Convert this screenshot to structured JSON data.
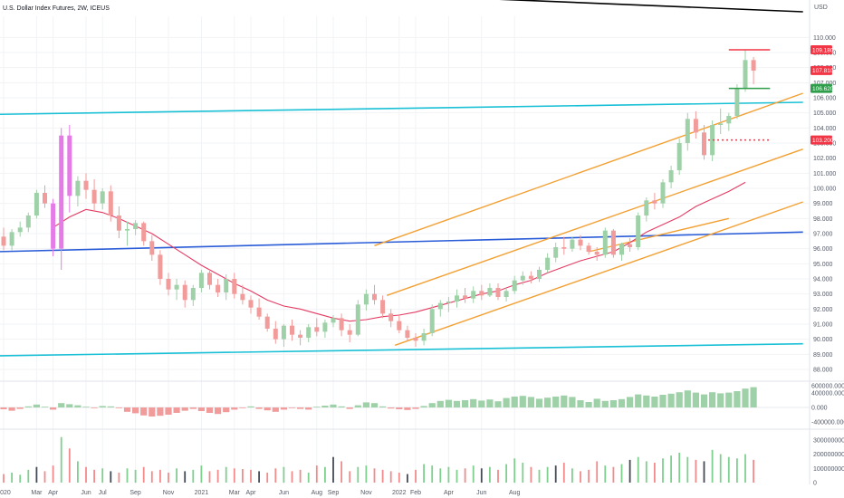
{
  "chart_data": {
    "type": "candlestick",
    "title": "U.S. Dollar Index Futures, 2W, ICEUS",
    "currency": "USD",
    "colors": {
      "up": "#9fd1a8",
      "down": "#f19b9b",
      "highlight": "#e47be6",
      "ma": "#e53a62",
      "channel": "#f3a033",
      "support_cyan": "#19c0d6",
      "support_blue": "#2a5cd8",
      "resistance_black": "#000000",
      "red_tag": "#f23645",
      "green_tag": "#2e9e4a"
    },
    "price_axis": {
      "ticks": [
        "110.000",
        "109.000",
        "108.000",
        "107.000",
        "106.000",
        "105.000",
        "104.000",
        "103.000",
        "102.000",
        "101.000",
        "100.000",
        "99.000",
        "98.000",
        "97.000",
        "96.000",
        "95.000",
        "94.000",
        "93.000",
        "92.000",
        "91.000",
        "90.000",
        "89.000",
        "88.000"
      ],
      "range": [
        87.4,
        111.4
      ]
    },
    "price_tags": [
      {
        "label": "109.180",
        "value": 109.18,
        "color": "#f23645"
      },
      {
        "label": "107.810",
        "value": 107.81,
        "color": "#f23645"
      },
      {
        "label": "106.620",
        "value": 106.62,
        "color": "#2e9e4a"
      },
      {
        "label": "103.200",
        "value": 103.2,
        "color": "#f23645"
      }
    ],
    "osc_axis": {
      "ticks": [
        "600000.000",
        "400000.000",
        "0.000",
        "-400000.000"
      ],
      "range": [
        -500000,
        650000
      ]
    },
    "vol_axis": {
      "ticks": [
        "300000000",
        "200000000",
        "100000000",
        "0"
      ],
      "range": [
        0,
        350000000
      ]
    },
    "time_labels": [
      {
        "label": "2020",
        "bar": 0
      },
      {
        "label": "Mar",
        "bar": 4
      },
      {
        "label": "Apr",
        "bar": 6
      },
      {
        "label": "Jun",
        "bar": 10
      },
      {
        "label": "Jul",
        "bar": 12
      },
      {
        "label": "Sep",
        "bar": 16
      },
      {
        "label": "Nov",
        "bar": 20
      },
      {
        "label": "2021",
        "bar": 24
      },
      {
        "label": "Mar",
        "bar": 28
      },
      {
        "label": "Apr",
        "bar": 30
      },
      {
        "label": "Jun",
        "bar": 34
      },
      {
        "label": "Aug",
        "bar": 38
      },
      {
        "label": "Sep",
        "bar": 40
      },
      {
        "label": "Nov",
        "bar": 44
      },
      {
        "label": "2022",
        "bar": 48
      },
      {
        "label": "Feb",
        "bar": 50
      },
      {
        "label": "Apr",
        "bar": 54
      },
      {
        "label": "Jun",
        "bar": 58
      },
      {
        "label": "Aug",
        "bar": 62
      }
    ],
    "candles": [
      {
        "o": 96.8,
        "h": 97.4,
        "l": 95.9,
        "c": 96.2
      },
      {
        "o": 96.2,
        "h": 97.3,
        "l": 95.9,
        "c": 97.1
      },
      {
        "o": 97.1,
        "h": 97.8,
        "l": 96.8,
        "c": 97.4
      },
      {
        "o": 97.4,
        "h": 98.4,
        "l": 97.1,
        "c": 98.2
      },
      {
        "o": 98.2,
        "h": 99.9,
        "l": 98.0,
        "c": 99.7
      },
      {
        "o": 99.7,
        "h": 100.2,
        "l": 98.7,
        "c": 99.0
      },
      {
        "o": 99.0,
        "h": 99.3,
        "l": 95.5,
        "c": 96.0
      },
      {
        "o": 96.0,
        "h": 104.0,
        "l": 94.6,
        "c": 103.5
      },
      {
        "o": 103.5,
        "h": 104.2,
        "l": 98.4,
        "c": 99.5
      },
      {
        "o": 99.5,
        "h": 100.8,
        "l": 98.8,
        "c": 100.5
      },
      {
        "o": 100.5,
        "h": 101.0,
        "l": 99.3,
        "c": 99.9
      },
      {
        "o": 99.9,
        "h": 100.6,
        "l": 98.5,
        "c": 99.0
      },
      {
        "o": 99.0,
        "h": 100.0,
        "l": 98.6,
        "c": 99.8
      },
      {
        "o": 99.8,
        "h": 100.2,
        "l": 97.8,
        "c": 98.2
      },
      {
        "o": 98.2,
        "h": 98.8,
        "l": 96.7,
        "c": 97.2
      },
      {
        "o": 97.2,
        "h": 97.8,
        "l": 96.2,
        "c": 97.3
      },
      {
        "o": 97.3,
        "h": 97.9,
        "l": 96.9,
        "c": 97.7
      },
      {
        "o": 97.7,
        "h": 97.8,
        "l": 96.2,
        "c": 96.5
      },
      {
        "o": 96.5,
        "h": 96.9,
        "l": 95.2,
        "c": 95.6
      },
      {
        "o": 95.6,
        "h": 95.9,
        "l": 93.6,
        "c": 94.0
      },
      {
        "o": 94.0,
        "h": 94.4,
        "l": 92.9,
        "c": 93.3
      },
      {
        "o": 93.3,
        "h": 94.0,
        "l": 92.6,
        "c": 93.6
      },
      {
        "o": 93.6,
        "h": 93.9,
        "l": 92.1,
        "c": 92.6
      },
      {
        "o": 92.6,
        "h": 93.6,
        "l": 92.2,
        "c": 93.4
      },
      {
        "o": 93.4,
        "h": 94.6,
        "l": 93.1,
        "c": 94.4
      },
      {
        "o": 94.4,
        "h": 94.6,
        "l": 93.3,
        "c": 93.6
      },
      {
        "o": 93.6,
        "h": 94.0,
        "l": 92.8,
        "c": 93.1
      },
      {
        "o": 93.1,
        "h": 94.3,
        "l": 92.6,
        "c": 94.0
      },
      {
        "o": 94.0,
        "h": 94.4,
        "l": 92.7,
        "c": 93.0
      },
      {
        "o": 93.0,
        "h": 93.6,
        "l": 92.3,
        "c": 92.6
      },
      {
        "o": 92.6,
        "h": 92.9,
        "l": 91.7,
        "c": 92.1
      },
      {
        "o": 92.1,
        "h": 92.7,
        "l": 91.3,
        "c": 91.5
      },
      {
        "o": 91.5,
        "h": 91.7,
        "l": 90.5,
        "c": 90.7
      },
      {
        "o": 90.7,
        "h": 91.2,
        "l": 89.7,
        "c": 90.0
      },
      {
        "o": 90.0,
        "h": 91.0,
        "l": 89.5,
        "c": 90.9
      },
      {
        "o": 90.9,
        "h": 91.3,
        "l": 89.9,
        "c": 90.3
      },
      {
        "o": 90.3,
        "h": 90.6,
        "l": 89.6,
        "c": 90.1
      },
      {
        "o": 90.1,
        "h": 91.0,
        "l": 89.8,
        "c": 90.8
      },
      {
        "o": 90.8,
        "h": 91.4,
        "l": 90.2,
        "c": 90.5
      },
      {
        "o": 90.5,
        "h": 91.3,
        "l": 90.1,
        "c": 91.1
      },
      {
        "o": 91.1,
        "h": 91.6,
        "l": 90.8,
        "c": 91.4
      },
      {
        "o": 91.4,
        "h": 91.7,
        "l": 90.2,
        "c": 90.6
      },
      {
        "o": 90.6,
        "h": 91.0,
        "l": 89.8,
        "c": 90.3
      },
      {
        "o": 90.3,
        "h": 92.6,
        "l": 90.2,
        "c": 92.3
      },
      {
        "o": 92.3,
        "h": 93.3,
        "l": 91.9,
        "c": 93.0
      },
      {
        "o": 93.0,
        "h": 93.6,
        "l": 92.3,
        "c": 92.6
      },
      {
        "o": 92.6,
        "h": 92.9,
        "l": 91.4,
        "c": 91.7
      },
      {
        "o": 91.7,
        "h": 92.0,
        "l": 90.8,
        "c": 91.2
      },
      {
        "o": 91.2,
        "h": 91.6,
        "l": 90.4,
        "c": 90.6
      },
      {
        "o": 90.6,
        "h": 90.9,
        "l": 89.9,
        "c": 90.1
      },
      {
        "o": 90.1,
        "h": 90.4,
        "l": 89.5,
        "c": 89.9
      },
      {
        "o": 89.9,
        "h": 90.7,
        "l": 89.6,
        "c": 90.4
      },
      {
        "o": 90.4,
        "h": 92.3,
        "l": 90.2,
        "c": 92.0
      },
      {
        "o": 92.0,
        "h": 92.6,
        "l": 91.5,
        "c": 92.4
      },
      {
        "o": 92.4,
        "h": 92.8,
        "l": 91.8,
        "c": 92.5
      },
      {
        "o": 92.5,
        "h": 93.3,
        "l": 92.1,
        "c": 92.9
      },
      {
        "o": 92.9,
        "h": 93.4,
        "l": 92.4,
        "c": 92.7
      },
      {
        "o": 92.7,
        "h": 93.5,
        "l": 92.4,
        "c": 93.2
      },
      {
        "o": 93.2,
        "h": 93.6,
        "l": 92.6,
        "c": 92.9
      },
      {
        "o": 92.9,
        "h": 93.7,
        "l": 92.8,
        "c": 93.4
      },
      {
        "o": 93.4,
        "h": 93.7,
        "l": 92.6,
        "c": 92.8
      },
      {
        "o": 92.8,
        "h": 93.4,
        "l": 92.5,
        "c": 93.2
      },
      {
        "o": 93.2,
        "h": 94.2,
        "l": 93.0,
        "c": 93.9
      },
      {
        "o": 93.9,
        "h": 94.5,
        "l": 93.6,
        "c": 94.2
      },
      {
        "o": 94.2,
        "h": 94.5,
        "l": 93.7,
        "c": 94.0
      },
      {
        "o": 94.0,
        "h": 94.8,
        "l": 93.8,
        "c": 94.6
      },
      {
        "o": 94.6,
        "h": 95.7,
        "l": 94.4,
        "c": 95.4
      },
      {
        "o": 95.4,
        "h": 96.4,
        "l": 95.1,
        "c": 96.1
      },
      {
        "o": 96.1,
        "h": 96.8,
        "l": 95.6,
        "c": 96.0
      },
      {
        "o": 96.0,
        "h": 96.8,
        "l": 95.8,
        "c": 96.6
      },
      {
        "o": 96.6,
        "h": 96.9,
        "l": 95.9,
        "c": 96.2
      },
      {
        "o": 96.2,
        "h": 96.4,
        "l": 95.6,
        "c": 95.8
      },
      {
        "o": 95.8,
        "h": 96.1,
        "l": 95.2,
        "c": 95.6
      },
      {
        "o": 95.6,
        "h": 97.4,
        "l": 95.4,
        "c": 97.2
      },
      {
        "o": 97.2,
        "h": 97.3,
        "l": 95.4,
        "c": 95.6
      },
      {
        "o": 95.6,
        "h": 96.4,
        "l": 95.2,
        "c": 96.3
      },
      {
        "o": 96.3,
        "h": 96.7,
        "l": 95.8,
        "c": 96.1
      },
      {
        "o": 96.1,
        "h": 98.4,
        "l": 95.9,
        "c": 98.2
      },
      {
        "o": 98.2,
        "h": 99.4,
        "l": 97.8,
        "c": 99.2
      },
      {
        "o": 99.2,
        "h": 99.7,
        "l": 98.6,
        "c": 99.0
      },
      {
        "o": 99.0,
        "h": 100.6,
        "l": 98.7,
        "c": 100.4
      },
      {
        "o": 100.4,
        "h": 101.5,
        "l": 100.0,
        "c": 101.2
      },
      {
        "o": 101.2,
        "h": 103.3,
        "l": 100.9,
        "c": 103.0
      },
      {
        "o": 103.0,
        "h": 105.0,
        "l": 102.5,
        "c": 104.6
      },
      {
        "o": 104.6,
        "h": 105.1,
        "l": 103.3,
        "c": 103.7
      },
      {
        "o": 103.7,
        "h": 104.2,
        "l": 101.9,
        "c": 102.2
      },
      {
        "o": 102.2,
        "h": 104.5,
        "l": 101.8,
        "c": 104.2
      },
      {
        "o": 104.2,
        "h": 105.3,
        "l": 103.6,
        "c": 104.3
      },
      {
        "o": 104.3,
        "h": 105.0,
        "l": 103.8,
        "c": 104.8
      },
      {
        "o": 104.8,
        "h": 106.9,
        "l": 104.6,
        "c": 106.6
      },
      {
        "o": 106.6,
        "h": 109.2,
        "l": 106.4,
        "c": 108.5
      },
      {
        "o": 108.5,
        "h": 108.7,
        "l": 106.9,
        "c": 107.8
      }
    ],
    "highlight_candles": [
      6,
      7,
      8
    ],
    "moving_average": [
      {
        "bar": 6,
        "v": 97.4
      },
      {
        "bar": 8,
        "v": 98.1
      },
      {
        "bar": 10,
        "v": 98.6
      },
      {
        "bar": 12,
        "v": 98.4
      },
      {
        "bar": 14,
        "v": 98.0
      },
      {
        "bar": 16,
        "v": 97.5
      },
      {
        "bar": 18,
        "v": 97.0
      },
      {
        "bar": 20,
        "v": 96.3
      },
      {
        "bar": 22,
        "v": 95.6
      },
      {
        "bar": 24,
        "v": 94.9
      },
      {
        "bar": 26,
        "v": 94.3
      },
      {
        "bar": 28,
        "v": 93.7
      },
      {
        "bar": 30,
        "v": 93.2
      },
      {
        "bar": 32,
        "v": 92.6
      },
      {
        "bar": 34,
        "v": 92.2
      },
      {
        "bar": 36,
        "v": 92.0
      },
      {
        "bar": 38,
        "v": 91.7
      },
      {
        "bar": 40,
        "v": 91.4
      },
      {
        "bar": 42,
        "v": 91.2
      },
      {
        "bar": 44,
        "v": 91.3
      },
      {
        "bar": 46,
        "v": 91.5
      },
      {
        "bar": 48,
        "v": 91.6
      },
      {
        "bar": 50,
        "v": 91.8
      },
      {
        "bar": 52,
        "v": 92.1
      },
      {
        "bar": 54,
        "v": 92.4
      },
      {
        "bar": 56,
        "v": 92.7
      },
      {
        "bar": 58,
        "v": 93.0
      },
      {
        "bar": 60,
        "v": 93.2
      },
      {
        "bar": 62,
        "v": 93.6
      },
      {
        "bar": 64,
        "v": 93.9
      },
      {
        "bar": 66,
        "v": 94.4
      },
      {
        "bar": 68,
        "v": 94.8
      },
      {
        "bar": 70,
        "v": 95.2
      },
      {
        "bar": 72,
        "v": 95.5
      },
      {
        "bar": 74,
        "v": 95.8
      },
      {
        "bar": 76,
        "v": 96.4
      },
      {
        "bar": 78,
        "v": 97.1
      },
      {
        "bar": 80,
        "v": 97.6
      },
      {
        "bar": 82,
        "v": 98.1
      },
      {
        "bar": 84,
        "v": 98.8
      },
      {
        "bar": 86,
        "v": 99.3
      },
      {
        "bar": 88,
        "v": 99.8
      },
      {
        "bar": 90,
        "v": 100.4
      }
    ],
    "trendlines": [
      {
        "color": "#000000",
        "x1": -1,
        "y1": 113.9,
        "x2": 97,
        "y2": 111.7,
        "width": 1.6
      },
      {
        "color": "#19c0d6",
        "x1": -1,
        "y1": 104.9,
        "x2": 97,
        "y2": 105.7,
        "width": 1.6
      },
      {
        "color": "#2a5cd8",
        "x1": -1,
        "y1": 95.8,
        "x2": 97,
        "y2": 97.1,
        "width": 1.6
      },
      {
        "color": "#19c0d6",
        "x1": -1,
        "y1": 88.9,
        "x2": 97,
        "y2": 89.7,
        "width": 1.6
      },
      {
        "color": "#f3a033",
        "x1": 45,
        "y1": 96.2,
        "x2": 97,
        "y2": 106.3,
        "width": 1.4
      },
      {
        "color": "#f3a033",
        "x1": 46.5,
        "y1": 92.9,
        "x2": 97,
        "y2": 102.6,
        "width": 1.4
      },
      {
        "color": "#f3a033",
        "x1": 47.5,
        "y1": 89.6,
        "x2": 97,
        "y2": 99.1,
        "width": 1.4
      },
      {
        "color": "#f3a033",
        "x1": 71,
        "y1": 95.8,
        "x2": 88,
        "y2": 98.0,
        "width": 1.4
      }
    ],
    "hlines": [
      {
        "value": 109.18,
        "x1": 88,
        "x2": 93,
        "color": "#f23645",
        "dashed": false
      },
      {
        "value": 106.62,
        "x1": 88,
        "x2": 93,
        "color": "#2e9e4a",
        "dashed": false
      },
      {
        "value": 103.2,
        "x1": 85.5,
        "x2": 93,
        "color": "#f23645",
        "dashed": true
      }
    ],
    "oscillator": [
      -50000,
      -90000,
      -40000,
      30000,
      80000,
      20000,
      -60000,
      120000,
      90000,
      60000,
      20000,
      -10000,
      40000,
      30000,
      -20000,
      -120000,
      -160000,
      -220000,
      -250000,
      -230000,
      -200000,
      -150000,
      -90000,
      -40000,
      -100000,
      -150000,
      -180000,
      -130000,
      -60000,
      -20000,
      30000,
      -40000,
      -80000,
      -120000,
      -60000,
      -20000,
      -40000,
      -60000,
      20000,
      50000,
      80000,
      30000,
      -40000,
      60000,
      140000,
      120000,
      30000,
      -30000,
      -50000,
      -70000,
      -40000,
      40000,
      120000,
      180000,
      210000,
      180000,
      200000,
      230000,
      190000,
      220000,
      170000,
      260000,
      300000,
      320000,
      290000,
      240000,
      270000,
      300000,
      330000,
      290000,
      200000,
      150000,
      240000,
      180000,
      200000,
      230000,
      290000,
      360000,
      330000,
      300000,
      350000,
      380000,
      420000,
      470000,
      410000,
      360000,
      420000,
      390000,
      410000,
      450000,
      520000,
      560000
    ],
    "volume": [
      60000000,
      70000000,
      55000000,
      90000000,
      110000000,
      80000000,
      120000000,
      320000000,
      240000000,
      150000000,
      110000000,
      90000000,
      100000000,
      80000000,
      70000000,
      100000000,
      90000000,
      110000000,
      80000000,
      90000000,
      70000000,
      100000000,
      80000000,
      90000000,
      120000000,
      80000000,
      90000000,
      110000000,
      100000000,
      95000000,
      90000000,
      80000000,
      70000000,
      100000000,
      110000000,
      80000000,
      90000000,
      70000000,
      120000000,
      110000000,
      180000000,
      150000000,
      80000000,
      110000000,
      120000000,
      100000000,
      90000000,
      80000000,
      70000000,
      60000000,
      90000000,
      130000000,
      120000000,
      100000000,
      110000000,
      90000000,
      100000000,
      120000000,
      100000000,
      110000000,
      90000000,
      130000000,
      170000000,
      140000000,
      110000000,
      90000000,
      110000000,
      120000000,
      140000000,
      100000000,
      80000000,
      90000000,
      150000000,
      120000000,
      110000000,
      130000000,
      160000000,
      180000000,
      150000000,
      140000000,
      170000000,
      190000000,
      210000000,
      180000000,
      160000000,
      150000000,
      230000000,
      200000000,
      180000000,
      170000000,
      200000000,
      160000000
    ]
  }
}
